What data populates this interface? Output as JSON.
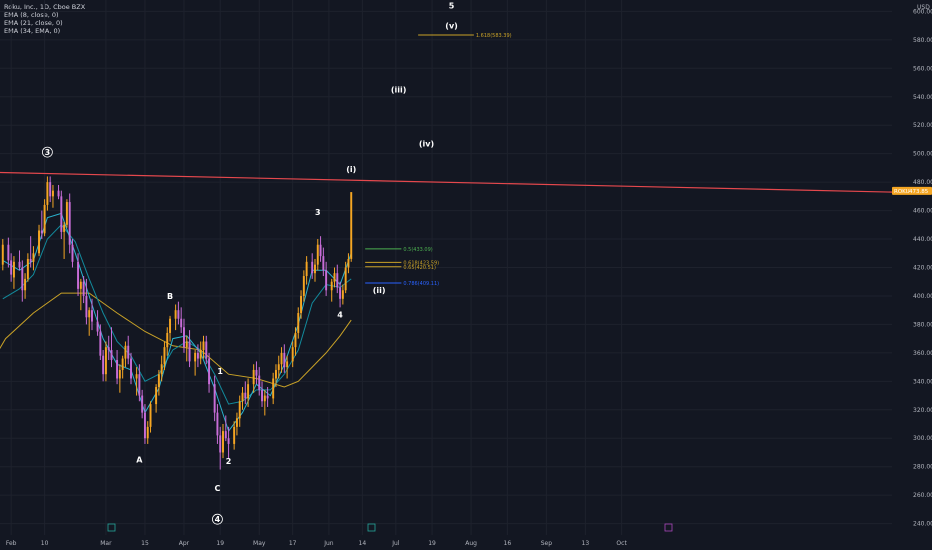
{
  "legend": {
    "symbol": "Roku, Inc., 1D, Cboe BZX",
    "ema8": "EMA (8, close, 0)",
    "ema21": "EMA (21, close, 0)",
    "ema34": "EMA (34, EMA, 0)"
  },
  "currency": "USD",
  "current_price": {
    "label": "ROKU",
    "value": "473.85"
  },
  "colors": {
    "background": "#131722",
    "bull": "#f5a623",
    "bear": "#c86dd7",
    "ema8": "#2ab3ce",
    "ema21": "#138a9c",
    "ema34": "#c9a227",
    "trendline": "#e5484d"
  },
  "chart_data": {
    "type": "candlestick",
    "y_ticks": [
      240,
      260,
      280,
      300,
      320,
      340,
      360,
      380,
      400,
      420,
      440,
      460,
      480,
      500,
      520,
      540,
      560,
      580,
      600
    ],
    "y_tick_labels": [
      "240.00",
      "260.00",
      "280.00",
      "300.00",
      "320.00",
      "340.00",
      "360.00",
      "380.00",
      "400.00",
      "420.00",
      "440.00",
      "460.00",
      "480.00",
      "500.00",
      "520.00",
      "540.00",
      "560.00",
      "580.00",
      "600.00"
    ],
    "ylim": [
      232,
      608
    ],
    "x_tick_labels": [
      "Feb",
      "10",
      "Mar",
      "15",
      "Apr",
      "19",
      "May",
      "17",
      "Jun",
      "14",
      "Jul",
      "19",
      "Aug",
      "16",
      "Sep",
      "13",
      "Oct"
    ],
    "xlim_index": [
      -2,
      318
    ],
    "x_tick_index": [
      2,
      14,
      36,
      50,
      64,
      77,
      91,
      103,
      116,
      128,
      140,
      153,
      167,
      180,
      194,
      208,
      221
    ],
    "candles": [
      [
        -1,
        422,
        440,
        418,
        436
      ],
      [
        1,
        436,
        441,
        420,
        425
      ],
      [
        2,
        425,
        430,
        410,
        415
      ],
      [
        3,
        413,
        428,
        405,
        424
      ],
      [
        5,
        424,
        432,
        418,
        420
      ],
      [
        6,
        420,
        425,
        396,
        404
      ],
      [
        7,
        404,
        416,
        398,
        412
      ],
      [
        8,
        412,
        430,
        410,
        426
      ],
      [
        9,
        426,
        442,
        420,
        424
      ],
      [
        10,
        424,
        435,
        418,
        430
      ],
      [
        12,
        430,
        450,
        428,
        446
      ],
      [
        13,
        446,
        460,
        440,
        444
      ],
      [
        14,
        444,
        468,
        442,
        464
      ],
      [
        15,
        464,
        484,
        460,
        480
      ],
      [
        16,
        480,
        484,
        466,
        470
      ],
      [
        17,
        470,
        478,
        462,
        474
      ],
      [
        19,
        474,
        478,
        468,
        470
      ],
      [
        20,
        470,
        474,
        440,
        445
      ],
      [
        21,
        445,
        452,
        426,
        450
      ],
      [
        22,
        450,
        468,
        448,
        466
      ],
      [
        23,
        466,
        472,
        430,
        436
      ],
      [
        24,
        436,
        440,
        420,
        424
      ],
      [
        26,
        424,
        430,
        400,
        405
      ],
      [
        27,
        405,
        412,
        390,
        410
      ],
      [
        28,
        410,
        414,
        395,
        400
      ],
      [
        29,
        400,
        412,
        380,
        385
      ],
      [
        30,
        385,
        392,
        372,
        390
      ],
      [
        31,
        390,
        398,
        376,
        382
      ],
      [
        33,
        382,
        390,
        372,
        375
      ],
      [
        34,
        375,
        380,
        355,
        358
      ],
      [
        35,
        358,
        362,
        340,
        345
      ],
      [
        36,
        345,
        368,
        340,
        364
      ],
      [
        37,
        364,
        372,
        355,
        362
      ],
      [
        38,
        362,
        378,
        350,
        355
      ],
      [
        40,
        355,
        362,
        338,
        342
      ],
      [
        41,
        342,
        352,
        332,
        348
      ],
      [
        42,
        348,
        358,
        342,
        356
      ],
      [
        43,
        356,
        368,
        350,
        365
      ],
      [
        44,
        365,
        372,
        352,
        356
      ],
      [
        45,
        356,
        360,
        338,
        342
      ],
      [
        47,
        342,
        350,
        330,
        345
      ],
      [
        48,
        345,
        352,
        326,
        330
      ],
      [
        49,
        330,
        334,
        314,
        318
      ],
      [
        50,
        318,
        324,
        296,
        300
      ],
      [
        51,
        300,
        312,
        296,
        308
      ],
      [
        52,
        308,
        326,
        304,
        324
      ],
      [
        54,
        324,
        338,
        318,
        336
      ],
      [
        55,
        336,
        348,
        330,
        345
      ],
      [
        56,
        345,
        358,
        340,
        352
      ],
      [
        57,
        352,
        368,
        348,
        364
      ],
      [
        58,
        364,
        378,
        358,
        374
      ],
      [
        59,
        374,
        386,
        368,
        384
      ],
      [
        61,
        384,
        394,
        376,
        390
      ],
      [
        62,
        390,
        396,
        380,
        384
      ],
      [
        63,
        384,
        392,
        374,
        378
      ],
      [
        64,
        378,
        384,
        360,
        364
      ],
      [
        65,
        364,
        372,
        354,
        368
      ],
      [
        66,
        368,
        376,
        350,
        354
      ],
      [
        68,
        354,
        362,
        344,
        360
      ],
      [
        69,
        360,
        366,
        350,
        356
      ],
      [
        70,
        356,
        368,
        352,
        362
      ],
      [
        71,
        362,
        372,
        356,
        368
      ],
      [
        72,
        368,
        372,
        352,
        356
      ],
      [
        73,
        356,
        360,
        332,
        338
      ],
      [
        75,
        338,
        344,
        312,
        318
      ],
      [
        76,
        318,
        324,
        296,
        302
      ],
      [
        77,
        302,
        308,
        278,
        290
      ],
      [
        78,
        290,
        310,
        286,
        305
      ],
      [
        79,
        305,
        316,
        298,
        300
      ],
      [
        80,
        300,
        308,
        286,
        296
      ],
      [
        82,
        296,
        312,
        292,
        308
      ],
      [
        83,
        308,
        318,
        302,
        314
      ],
      [
        84,
        314,
        330,
        308,
        326
      ],
      [
        85,
        326,
        336,
        320,
        332
      ],
      [
        86,
        332,
        340,
        324,
        328
      ],
      [
        87,
        328,
        342,
        322,
        338
      ],
      [
        89,
        338,
        352,
        332,
        348
      ],
      [
        90,
        348,
        354,
        338,
        344
      ],
      [
        91,
        344,
        350,
        330,
        334
      ],
      [
        92,
        334,
        340,
        322,
        326
      ],
      [
        93,
        326,
        334,
        316,
        330
      ],
      [
        94,
        330,
        336,
        322,
        328
      ],
      [
        96,
        328,
        346,
        324,
        342
      ],
      [
        97,
        342,
        352,
        336,
        348
      ],
      [
        98,
        348,
        358,
        342,
        352
      ],
      [
        99,
        352,
        364,
        346,
        360
      ],
      [
        100,
        360,
        366,
        346,
        350
      ],
      [
        101,
        350,
        358,
        342,
        354
      ],
      [
        103,
        354,
        368,
        350,
        364
      ],
      [
        104,
        364,
        378,
        358,
        374
      ],
      [
        105,
        374,
        392,
        370,
        388
      ],
      [
        106,
        388,
        404,
        384,
        400
      ],
      [
        107,
        400,
        418,
        396,
        414
      ],
      [
        108,
        414,
        428,
        408,
        424
      ],
      [
        110,
        424,
        430,
        412,
        416
      ],
      [
        111,
        416,
        426,
        410,
        422
      ],
      [
        112,
        422,
        440,
        418,
        436
      ],
      [
        113,
        436,
        442,
        424,
        428
      ],
      [
        114,
        428,
        434,
        414,
        418
      ],
      [
        115,
        418,
        424,
        400,
        404
      ],
      [
        117,
        404,
        412,
        396,
        410
      ],
      [
        118,
        410,
        420,
        406,
        416
      ],
      [
        119,
        416,
        422,
        402,
        406
      ],
      [
        120,
        406,
        410,
        392,
        398
      ],
      [
        121,
        398,
        408,
        394,
        404
      ],
      [
        122,
        404,
        424,
        402,
        420
      ],
      [
        123,
        420,
        430,
        416,
        426
      ],
      [
        124,
        426,
        472,
        424,
        473
      ]
    ],
    "ema8": [
      [
        -1,
        425
      ],
      [
        5,
        418
      ],
      [
        10,
        425
      ],
      [
        15,
        455
      ],
      [
        20,
        458
      ],
      [
        25,
        430
      ],
      [
        30,
        400
      ],
      [
        35,
        370
      ],
      [
        40,
        352
      ],
      [
        45,
        348
      ],
      [
        50,
        318
      ],
      [
        55,
        335
      ],
      [
        60,
        370
      ],
      [
        65,
        372
      ],
      [
        70,
        360
      ],
      [
        75,
        335
      ],
      [
        80,
        305
      ],
      [
        85,
        318
      ],
      [
        90,
        338
      ],
      [
        95,
        330
      ],
      [
        100,
        352
      ],
      [
        105,
        380
      ],
      [
        110,
        418
      ],
      [
        115,
        418
      ],
      [
        120,
        408
      ],
      [
        124,
        430
      ]
    ],
    "ema21": [
      [
        -1,
        398
      ],
      [
        5,
        405
      ],
      [
        10,
        415
      ],
      [
        15,
        440
      ],
      [
        20,
        450
      ],
      [
        25,
        438
      ],
      [
        30,
        412
      ],
      [
        35,
        388
      ],
      [
        40,
        368
      ],
      [
        45,
        358
      ],
      [
        50,
        340
      ],
      [
        55,
        345
      ],
      [
        60,
        362
      ],
      [
        65,
        368
      ],
      [
        70,
        362
      ],
      [
        75,
        345
      ],
      [
        80,
        324
      ],
      [
        85,
        326
      ],
      [
        90,
        334
      ],
      [
        95,
        334
      ],
      [
        100,
        345
      ],
      [
        105,
        362
      ],
      [
        110,
        395
      ],
      [
        115,
        408
      ],
      [
        120,
        406
      ],
      [
        124,
        412
      ]
    ],
    "ema34": [
      [
        -16,
        318
      ],
      [
        -6,
        350
      ],
      [
        0,
        370
      ],
      [
        10,
        388
      ],
      [
        20,
        402
      ],
      [
        30,
        402
      ],
      [
        40,
        388
      ],
      [
        50,
        375
      ],
      [
        60,
        365
      ],
      [
        70,
        362
      ],
      [
        80,
        345
      ],
      [
        90,
        342
      ],
      [
        100,
        336
      ],
      [
        105,
        340
      ],
      [
        110,
        350
      ],
      [
        115,
        360
      ],
      [
        120,
        372
      ],
      [
        124,
        383
      ]
    ],
    "trendline": {
      "from": [
        -7,
        487
      ],
      "to": [
        318,
        473
      ]
    },
    "fib_levels": [
      {
        "label": "0.5(433.09)",
        "value": 433.09,
        "color": "#4caf50"
      },
      {
        "label": "0.618(423.59)",
        "value": 423.59,
        "color": "#c9a227"
      },
      {
        "label": "0.65(420.51)",
        "value": 420.51,
        "color": "#c9a227"
      },
      {
        "label": "0.786(409.11)",
        "value": 409.11,
        "color": "#2962ff"
      },
      {
        "label": "1.618(583.39)",
        "value": 583.39,
        "color": "#c9a227"
      }
    ],
    "wave_labels": [
      {
        "text": "3",
        "x": 15,
        "y": 499,
        "circled": true
      },
      {
        "text": "A",
        "x": 48,
        "y": 283,
        "circled": false
      },
      {
        "text": "B",
        "x": 59,
        "y": 398,
        "circled": false
      },
      {
        "text": "C",
        "x": 76,
        "y": 263,
        "circled": false
      },
      {
        "text": "4",
        "x": 76,
        "y": 241,
        "circled": true
      },
      {
        "text": "1",
        "x": 77,
        "y": 345,
        "circled": false
      },
      {
        "text": "2",
        "x": 80,
        "y": 282,
        "circled": false
      },
      {
        "text": "3",
        "x": 112,
        "y": 457,
        "circled": false
      },
      {
        "text": "4",
        "x": 120,
        "y": 385,
        "circled": false
      },
      {
        "text": "(i)",
        "x": 124,
        "y": 487,
        "circled": false
      },
      {
        "text": "(ii)",
        "x": 134,
        "y": 402,
        "circled": false
      },
      {
        "text": "(iii)",
        "x": 141,
        "y": 543,
        "circled": false
      },
      {
        "text": "(iv)",
        "x": 151,
        "y": 505,
        "circled": false
      },
      {
        "text": "(v)",
        "x": 160,
        "y": 588,
        "circled": false
      },
      {
        "text": "5",
        "x": 160,
        "y": 602,
        "circled": false
      }
    ]
  }
}
